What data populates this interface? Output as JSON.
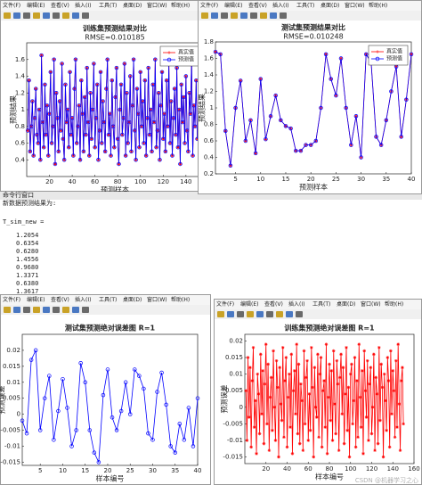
{
  "windows": [
    {
      "menu": [
        "文件(F)",
        "编辑(E)",
        "查看(V)",
        "插入(I)",
        "工具(T)",
        "桌面(D)",
        "窗口(W)",
        "帮助(H)"
      ],
      "chart_data": {
        "type": "line",
        "title": "训练集预测结果对比",
        "subtitle": "RMSE=0.010185",
        "xlabel": "预测样本",
        "ylabel": "预测结果",
        "xlim": [
          0,
          155
        ],
        "xticks": [
          20,
          40,
          60,
          80,
          100,
          120,
          140
        ],
        "ylim": [
          0.2,
          1.8
        ],
        "yticks": [
          0.4,
          0.6,
          0.8,
          1,
          1.2,
          1.4,
          1.6
        ],
        "legend": "upper right",
        "series": [
          {
            "name": "真实值",
            "color": "#ff0000",
            "marker": "*",
            "values": [
              0.75,
              1.35,
              0.5,
              0.8,
              1.1,
              0.45,
              0.9,
              1.25,
              0.7,
              0.6,
              1.0,
              0.4,
              1.65,
              0.85,
              0.55,
              1.3,
              0.7,
              1.05,
              0.45,
              0.95,
              1.45,
              0.6,
              0.8,
              1.6,
              0.35,
              1.2,
              0.9,
              0.5,
              1.1,
              0.75,
              1.55,
              0.65,
              0.4,
              1.3,
              0.85,
              1.0,
              0.55,
              1.45,
              0.7,
              0.9,
              0.45,
              1.25,
              1.6,
              0.6,
              0.8,
              1.05,
              0.4,
              1.35,
              0.95,
              0.5,
              1.15,
              0.7,
              1.5,
              0.85,
              0.45,
              1.2,
              0.65,
              1.0,
              1.55,
              0.55,
              0.9,
              1.3,
              0.4,
              0.75,
              1.45,
              0.6,
              1.1,
              0.85,
              0.5,
              1.25,
              1.6,
              0.7,
              0.95,
              0.45,
              1.35,
              0.8,
              0.55,
              1.15,
              1.5,
              0.65,
              0.35,
              1.0,
              1.3,
              0.7,
              0.9,
              1.55,
              0.45,
              1.2,
              0.6,
              0.85,
              1.4,
              0.5,
              1.05,
              1.6,
              0.75,
              0.4,
              1.25,
              0.95,
              0.55,
              1.45,
              0.8,
              1.1,
              0.6,
              1.35,
              0.45,
              0.9,
              1.5,
              0.7,
              1.0,
              0.5,
              1.3,
              0.85,
              1.6,
              0.55,
              0.75,
              1.2,
              0.4,
              1.05,
              1.45,
              0.65,
              0.95,
              0.5,
              1.35,
              0.8,
              1.55,
              0.6,
              1.1,
              0.45,
              0.9,
              1.25,
              0.7,
              1.5,
              0.55,
              1.0,
              0.35,
              1.3,
              0.85,
              1.15,
              0.6,
              1.4,
              0.75,
              0.5,
              1.2,
              0.95,
              1.6,
              0.45,
              1.05,
              0.8,
              1.35,
              0.65
            ]
          },
          {
            "name": "预测值",
            "color": "#0000ff",
            "marker": "o",
            "values": [
              0.75,
              1.35,
              0.5,
              0.8,
              1.1,
              0.45,
              0.9,
              1.25,
              0.7,
              0.6,
              1.0,
              0.4,
              1.65,
              0.85,
              0.55,
              1.3,
              0.7,
              1.05,
              0.45,
              0.95,
              1.45,
              0.6,
              0.8,
              1.6,
              0.35,
              1.2,
              0.9,
              0.5,
              1.1,
              0.75,
              1.55,
              0.65,
              0.4,
              1.3,
              0.85,
              1.0,
              0.55,
              1.45,
              0.7,
              0.9,
              0.45,
              1.25,
              1.6,
              0.6,
              0.8,
              1.05,
              0.4,
              1.35,
              0.95,
              0.5,
              1.15,
              0.7,
              1.5,
              0.85,
              0.45,
              1.2,
              0.65,
              1.0,
              1.55,
              0.55,
              0.9,
              1.3,
              0.4,
              0.75,
              1.45,
              0.6,
              1.1,
              0.85,
              0.5,
              1.25,
              1.6,
              0.7,
              0.95,
              0.45,
              1.35,
              0.8,
              0.55,
              1.15,
              1.5,
              0.65,
              0.35,
              1.0,
              1.3,
              0.7,
              0.9,
              1.55,
              0.45,
              1.2,
              0.6,
              0.85,
              1.4,
              0.5,
              1.05,
              1.6,
              0.75,
              0.4,
              1.25,
              0.95,
              0.55,
              1.45,
              0.8,
              1.1,
              0.6,
              1.35,
              0.45,
              0.9,
              1.5,
              0.7,
              1.0,
              0.5,
              1.3,
              0.85,
              1.6,
              0.55,
              0.75,
              1.2,
              0.4,
              1.05,
              1.45,
              0.65,
              0.95,
              0.5,
              1.35,
              0.8,
              1.55,
              0.6,
              1.1,
              0.45,
              0.9,
              1.25,
              0.7,
              1.5,
              0.55,
              1.0,
              0.35,
              1.3,
              0.85,
              1.15,
              0.6,
              1.4,
              0.75,
              0.5,
              1.2,
              0.95,
              1.6,
              0.45,
              1.05,
              0.8,
              1.35,
              0.65
            ]
          }
        ]
      }
    },
    {
      "menu": [
        "文件(F)",
        "编辑(E)",
        "查看(V)",
        "插入(I)",
        "工具(T)",
        "桌面(D)",
        "窗口(W)",
        "帮助(H)"
      ],
      "chart_data": {
        "type": "line",
        "title": "测试集预测结果对比",
        "subtitle": "RMSE=0.010248",
        "xlabel": "预测样本",
        "ylabel": "预测结果",
        "xlim": [
          1,
          40
        ],
        "xticks": [
          5,
          10,
          15,
          20,
          25,
          30,
          35,
          40
        ],
        "ylim": [
          0.2,
          1.8
        ],
        "yticks": [
          0.2,
          0.4,
          0.6,
          0.8,
          1,
          1.2,
          1.4,
          1.6,
          1.8
        ],
        "legend": "upper right",
        "series": [
          {
            "name": "真实值",
            "color": "#ff0000",
            "marker": "*",
            "values": [
              1.68,
              1.65,
              0.72,
              0.3,
              1.0,
              1.33,
              0.6,
              0.85,
              0.45,
              1.35,
              0.62,
              0.9,
              1.15,
              0.85,
              0.78,
              0.75,
              0.48,
              0.48,
              0.55,
              0.55,
              0.6,
              1.0,
              1.65,
              1.35,
              1.15,
              1.6,
              1.0,
              0.55,
              0.9,
              0.4,
              1.65,
              1.55,
              0.65,
              0.55,
              0.85,
              1.2,
              1.5,
              0.65,
              1.1,
              1.65
            ]
          },
          {
            "name": "预测值",
            "color": "#0000ff",
            "marker": "o",
            "values": [
              1.68,
              1.65,
              0.72,
              0.3,
              1.0,
              1.33,
              0.6,
              0.85,
              0.45,
              1.35,
              0.62,
              0.9,
              1.15,
              0.85,
              0.78,
              0.75,
              0.48,
              0.48,
              0.55,
              0.55,
              0.6,
              1.0,
              1.65,
              1.35,
              1.15,
              1.6,
              1.0,
              0.55,
              0.9,
              0.4,
              1.65,
              1.55,
              0.65,
              0.55,
              0.85,
              1.2,
              1.5,
              0.65,
              1.1,
              1.65
            ]
          }
        ]
      }
    },
    {
      "menu": [
        "文件(F)",
        "编辑(E)",
        "查看(V)",
        "插入(I)",
        "工具(T)",
        "桌面(D)",
        "窗口(W)",
        "帮助(H)"
      ],
      "chart_data": {
        "type": "line",
        "title": "测试集预测绝对误差图 R=1",
        "xlabel": "样本编号",
        "ylabel": "预测误差",
        "xlim": [
          1,
          40
        ],
        "xticks": [
          5,
          10,
          15,
          20,
          25,
          30,
          35,
          40
        ],
        "ylim": [
          -0.016,
          0.025
        ],
        "yticks": [
          -0.015,
          -0.01,
          -0.005,
          0,
          0.005,
          0.01,
          0.015,
          0.02
        ],
        "legend": false,
        "series": [
          {
            "color": "#0000ff",
            "marker": "o",
            "values": [
              -0.002,
              -0.006,
              0.017,
              0.02,
              -0.005,
              0.005,
              0.012,
              -0.008,
              0.001,
              0.011,
              0.002,
              -0.01,
              -0.005,
              0.016,
              0.01,
              -0.005,
              -0.012,
              -0.015,
              0.006,
              0.014,
              -0.001,
              -0.005,
              0.001,
              0.01,
              0.0,
              0.014,
              0.012,
              0.008,
              -0.006,
              -0.008,
              0.007,
              0.013,
              0.003,
              -0.01,
              -0.012,
              -0.003,
              -0.008,
              0.002,
              -0.01,
              0.005
            ]
          }
        ]
      }
    },
    {
      "menu": [
        "文件(F)",
        "编辑(E)",
        "查看(V)",
        "插入(I)",
        "工具(T)",
        "桌面(D)",
        "窗口(W)",
        "帮助(H)"
      ],
      "chart_data": {
        "type": "line",
        "title": "训练集预测绝对误差图 R=1",
        "xlabel": "样本编号",
        "ylabel": "预测误差",
        "xlim": [
          0,
          160
        ],
        "xticks": [
          20,
          40,
          60,
          80,
          100,
          120,
          140,
          160
        ],
        "ylim": [
          -0.017,
          0.022
        ],
        "yticks": [
          -0.015,
          -0.01,
          -0.005,
          0,
          0.005,
          0.01,
          0.015,
          0.02
        ],
        "legend": false,
        "series": [
          {
            "color": "#ff0000",
            "marker": "*",
            "values": [
              0.005,
              -0.01,
              0.015,
              -0.003,
              0.012,
              -0.012,
              0.008,
              0.018,
              -0.006,
              0.002,
              -0.014,
              0.01,
              0.004,
              -0.008,
              0.016,
              -0.002,
              0.011,
              -0.011,
              0.007,
              0.019,
              -0.005,
              0.013,
              -0.013,
              0.003,
              0.009,
              -0.007,
              0.017,
              0.0,
              -0.01,
              0.014,
              0.006,
              -0.015,
              0.012,
              0.001,
              -0.004,
              0.018,
              -0.009,
              0.008,
              0.015,
              -0.012,
              0.003,
              0.01,
              -0.006,
              0.016,
              -0.014,
              0.005,
              0.011,
              -0.002,
              0.019,
              -0.008,
              0.013,
              -0.011,
              0.007,
              0.002,
              -0.013,
              0.017,
              -0.005,
              0.009,
              0.014,
              -0.01,
              0.004,
              -0.007,
              0.018,
              0.006,
              -0.015,
              0.012,
              0.0,
              -0.003,
              0.016,
              -0.009,
              0.01,
              0.015,
              -0.012,
              0.005,
              0.008,
              -0.006,
              0.019,
              -0.014,
              0.003,
              0.013,
              -0.004,
              0.011,
              -0.01,
              0.017,
              0.001,
              -0.008,
              0.014,
              0.007,
              -0.013,
              0.009,
              0.016,
              -0.002,
              0.012,
              -0.011,
              0.004,
              0.018,
              -0.007,
              0.006,
              -0.015,
              0.01,
              0.013,
              -0.005,
              0.002,
              0.015,
              -0.012,
              0.008,
              -0.009,
              0.019,
              0.003,
              -0.006,
              0.011,
              -0.014,
              0.017,
              0.005,
              -0.003,
              0.014,
              -0.01,
              0.007,
              0.012,
              -0.008,
              0.0,
              0.016,
              -0.013,
              0.009,
              0.004,
              -0.011,
              0.018,
              -0.004,
              0.013,
              0.006,
              -0.015,
              0.01,
              0.002,
              -0.007,
              0.015,
              0.008,
              -0.012,
              0.017,
              -0.002,
              0.011,
              0.005,
              -0.009,
              0.014,
              -0.006,
              0.019,
              0.001,
              -0.013,
              0.008,
              0.012,
              -0.005
            ]
          }
        ]
      },
      "watermark": "CSDN @机器学习之心"
    }
  ],
  "command_window": {
    "title": "命令行窗口",
    "line1": "新数据预测结果为:",
    "var": "T_sim_new =",
    "values": [
      "1.2054",
      "0.6354",
      "0.6280",
      "1.4556",
      "0.9680",
      "1.3371",
      "0.6380",
      "1.3617"
    ]
  }
}
